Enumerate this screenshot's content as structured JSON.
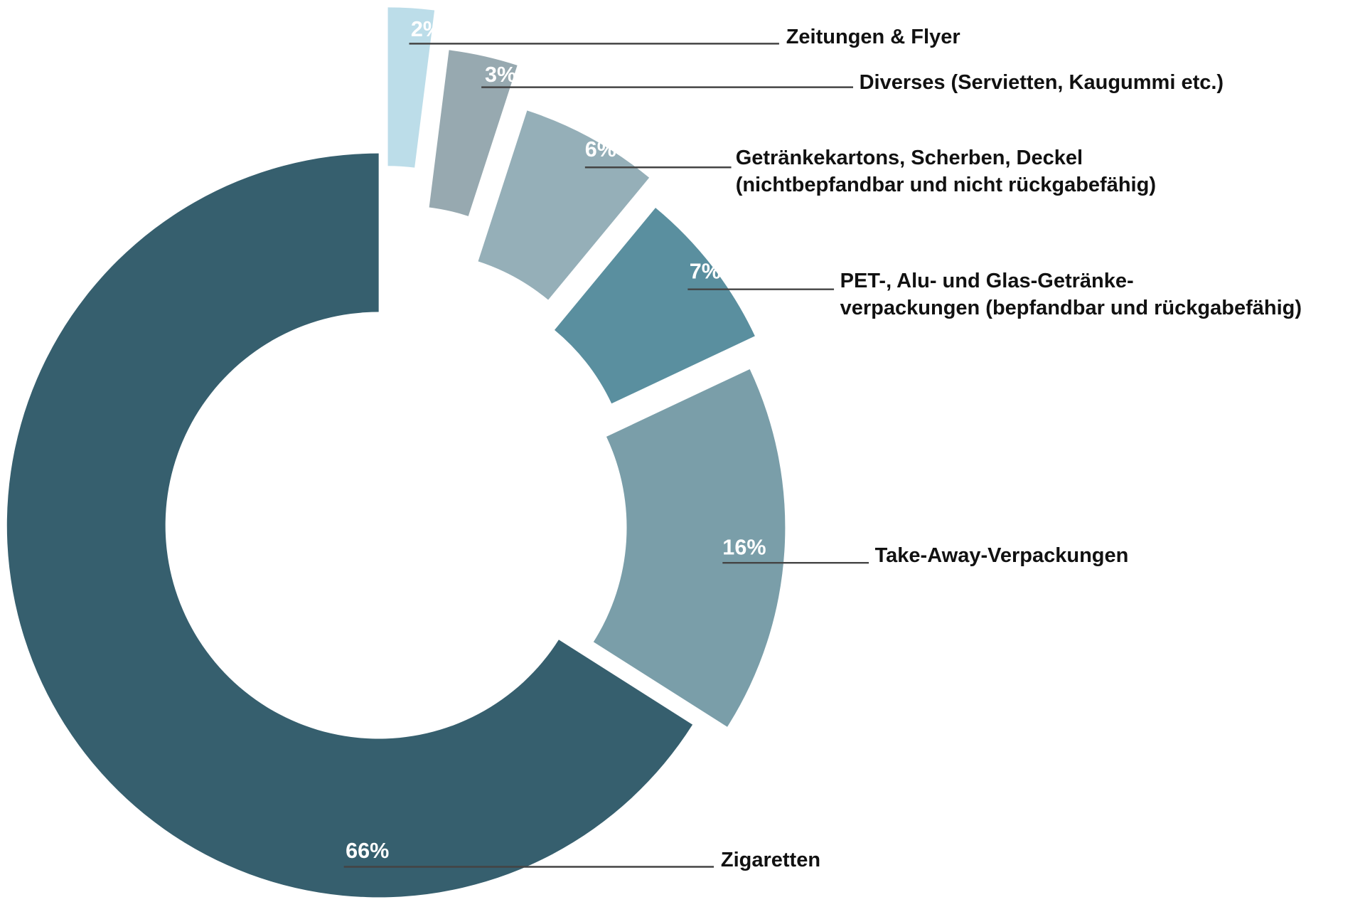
{
  "chart_data": {
    "type": "donut",
    "categories": [
      "Zeitungen & Flyer",
      "Diverses (Servietten, Kaugummi etc.)",
      "Getränkekartons, Scherben, Deckel\n(nichtbepfandbar und nicht rückgabefähig)",
      "PET-, Alu- und Glas-Getränke-\nverpackungen (bepfandbar und rückgabefähig)",
      "Take-Away-Verpackungen",
      "Zigaretten"
    ],
    "values": [
      2,
      3,
      6,
      7,
      16,
      66
    ],
    "value_labels": [
      "2%",
      "3%",
      "6%",
      "7%",
      "16%",
      "66%"
    ],
    "colors": [
      "#bcdde9",
      "#97a9b0",
      "#95afb8",
      "#5a8f9f",
      "#7a9ea9",
      "#365f6e"
    ]
  }
}
